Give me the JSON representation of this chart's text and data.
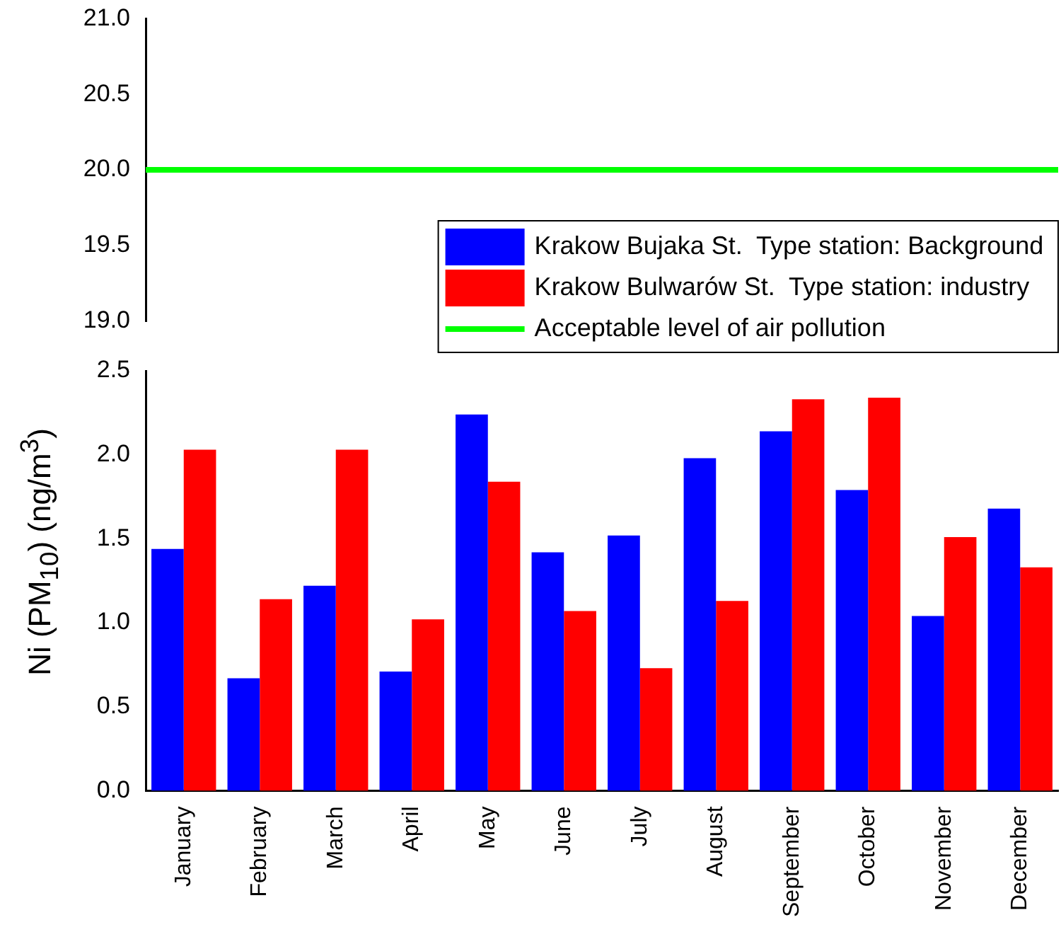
{
  "chart_data": [
    {
      "type": "line",
      "categories": [
        null,
        null,
        null,
        null,
        null,
        null,
        null,
        null,
        null,
        null,
        null,
        null
      ],
      "series": [
        {
          "name": "Acceptable level of air pollution",
          "color": "#00ff00",
          "values": [
            20,
            20,
            20,
            20,
            20,
            20,
            20,
            20,
            20,
            20,
            20,
            20
          ]
        }
      ],
      "marker": "none",
      "ylim": [
        19,
        21
      ],
      "yticks": [
        {
          "value": 19,
          "label": "19.0"
        },
        {
          "value": 19.5,
          "label": "19.5"
        },
        {
          "value": 20,
          "label": "20.0"
        },
        {
          "value": 20.5,
          "label": "20.5"
        },
        {
          "value": 21,
          "label": "21.0"
        }
      ],
      "tick_labels": "y",
      "grid": false
    },
    {
      "type": "bar",
      "ylabel": "Ni (PM$_{10}$) (ng/m$^{3}$)",
      "categories": [
        "January",
        "February",
        "March",
        "April",
        "May",
        "June",
        "July",
        "August",
        "September",
        "October",
        "November",
        "December"
      ],
      "series": [
        {
          "name": "Krakow Bujaka St.  Type station: Background",
          "color": "#0000ff",
          "values": [
            1.44,
            0.67,
            1.22,
            0.71,
            2.24,
            1.42,
            1.52,
            1.98,
            2.14,
            1.79,
            1.04,
            1.68
          ]
        },
        {
          "name": "Krakow Bulwarów St.  Type station: industry",
          "color": "#ff0000",
          "values": [
            2.03,
            1.14,
            2.03,
            1.02,
            1.84,
            1.07,
            0.73,
            1.13,
            2.33,
            2.34,
            1.51,
            1.33
          ]
        }
      ],
      "ylim": [
        0,
        2.5
      ],
      "yticks": [
        {
          "value": 0,
          "label": "0.0"
        },
        {
          "value": 0.5,
          "label": "0.5"
        },
        {
          "value": 1,
          "label": "1.0"
        },
        {
          "value": 1.5,
          "label": "1.5"
        },
        {
          "value": 2,
          "label": "2.0"
        },
        {
          "value": 2.5,
          "label": "2.5"
        }
      ],
      "grid": false,
      "legend": "top right"
    }
  ]
}
